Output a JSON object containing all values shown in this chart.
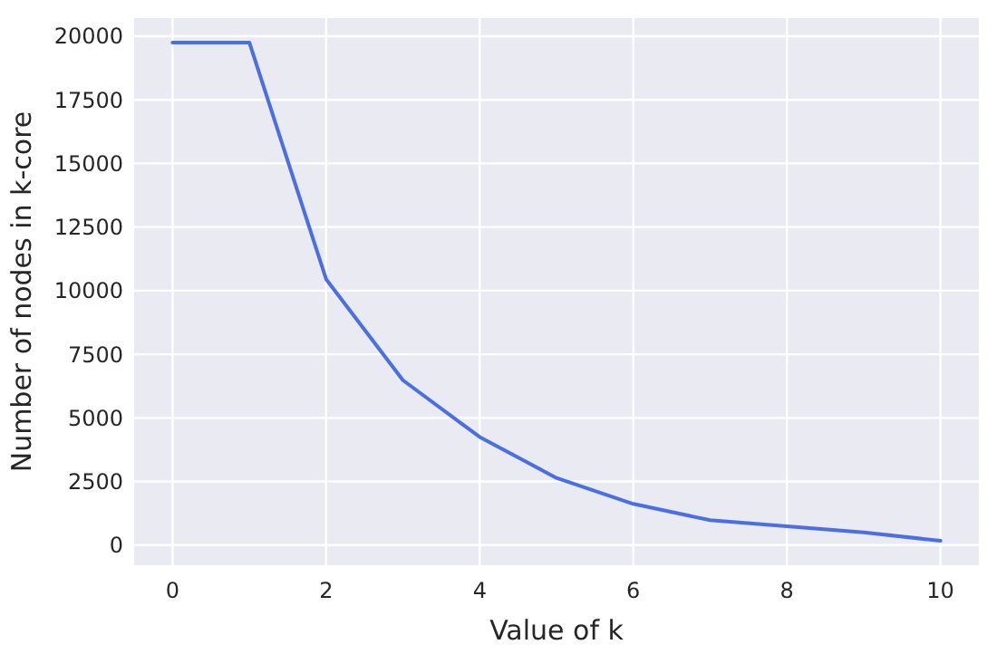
{
  "chart_data": {
    "type": "line",
    "xlabel": "Value of k",
    "ylabel": "Number of nodes in k-core",
    "x": [
      0,
      1,
      2,
      3,
      4,
      5,
      6,
      7,
      8,
      9,
      10
    ],
    "series": [
      {
        "color": "#4a6fe3",
        "values": [
          19750,
          19750,
          10450,
          6480,
          4250,
          2640,
          1620,
          980,
          740,
          500,
          170
        ]
      }
    ],
    "xlim": [
      -0.5,
      10.5
    ],
    "ylim": [
      -790,
      20710
    ],
    "xticks": [
      0,
      2,
      4,
      6,
      8,
      10
    ],
    "yticks": [
      0,
      2500,
      5000,
      7500,
      10000,
      12500,
      15000,
      17500,
      20000
    ],
    "grid": true,
    "marker": "none",
    "line_style": "solid"
  }
}
